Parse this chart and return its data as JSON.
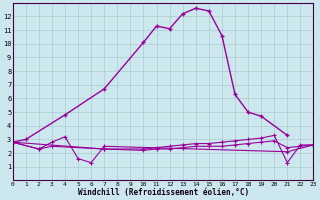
{
  "xlabel": "Windchill (Refroidissement éolien,°C)",
  "bg_color": "#cce8ee",
  "grid_color": "#aacccc",
  "line_color": "#990099",
  "xlim": [
    0,
    23
  ],
  "ylim": [
    0,
    13
  ],
  "xticks": [
    0,
    1,
    2,
    3,
    4,
    5,
    6,
    7,
    8,
    9,
    10,
    11,
    12,
    13,
    14,
    15,
    16,
    17,
    18,
    19,
    20,
    21,
    22,
    23
  ],
  "yticks": [
    1,
    2,
    3,
    4,
    5,
    6,
    7,
    8,
    9,
    10,
    11,
    12
  ],
  "s0x": [
    0,
    1,
    4,
    7,
    10,
    11,
    12,
    13,
    14,
    15,
    16,
    17,
    18,
    19,
    21
  ],
  "s0y": [
    2.8,
    3.0,
    4.8,
    6.7,
    10.1,
    11.3,
    11.1,
    12.2,
    12.6,
    12.4,
    10.6,
    6.3,
    5.0,
    4.7,
    3.3
  ],
  "s1x": [
    0,
    2,
    3,
    4,
    5,
    6,
    7,
    21,
    23
  ],
  "s1y": [
    2.8,
    2.3,
    2.8,
    3.2,
    1.6,
    1.3,
    2.5,
    2.1,
    2.6
  ],
  "s2x": [
    0,
    2,
    3,
    7,
    10,
    11,
    12,
    13,
    14,
    15,
    16,
    17,
    18,
    19,
    20,
    21,
    22,
    23
  ],
  "s2y": [
    2.8,
    2.3,
    2.5,
    2.3,
    2.3,
    2.4,
    2.5,
    2.6,
    2.7,
    2.7,
    2.8,
    2.9,
    3.0,
    3.1,
    3.3,
    1.3,
    2.6,
    2.6
  ],
  "s3x": [
    0,
    7,
    10,
    11,
    12,
    13,
    14,
    15,
    16,
    17,
    18,
    19,
    20,
    21,
    22,
    23
  ],
  "s3y": [
    2.8,
    2.3,
    2.2,
    2.3,
    2.3,
    2.4,
    2.5,
    2.5,
    2.5,
    2.6,
    2.7,
    2.8,
    2.9,
    2.4,
    2.5,
    2.6
  ]
}
